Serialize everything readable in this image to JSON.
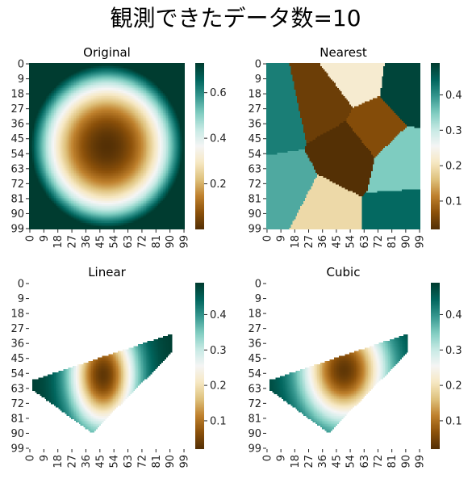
{
  "figure": {
    "suptitle": "観測できたデータ数=10",
    "colormap": "BrBG",
    "colormap_stops": [
      "#543005",
      "#8c510a",
      "#bf812d",
      "#dfc27d",
      "#f6e8c3",
      "#f5f5f5",
      "#c7eae5",
      "#80cdc1",
      "#35978f",
      "#01665e",
      "#003c30"
    ]
  },
  "chart_data": [
    {
      "type": "heatmap",
      "title": "Original",
      "grid_size": [
        100,
        100
      ],
      "xticks": [
        "0",
        "9",
        "18",
        "27",
        "36",
        "45",
        "54",
        "63",
        "72",
        "81",
        "90",
        "99"
      ],
      "yticks": [
        "0",
        "9",
        "18",
        "27",
        "36",
        "45",
        "54",
        "63",
        "72",
        "81",
        "90",
        "99"
      ],
      "vrange": [
        0.0,
        0.73
      ],
      "colorbar_ticks": [
        "0.2",
        "0.4",
        "0.6"
      ],
      "function": "0.75*(((x-49.5)/49.5)^2+((y-49.5)/49.5)^2)",
      "nan_region": "none"
    },
    {
      "type": "heatmap",
      "title": "Nearest",
      "grid_size": [
        100,
        100
      ],
      "xticks": [
        "0",
        "9",
        "18",
        "27",
        "36",
        "45",
        "54",
        "63",
        "72",
        "81",
        "90",
        "99"
      ],
      "yticks": [
        "0",
        "9",
        "18",
        "27",
        "36",
        "45",
        "54",
        "63",
        "72",
        "81",
        "90",
        "99"
      ],
      "vrange": [
        0.02,
        0.49
      ],
      "colorbar_ticks": [
        "0.1",
        "0.2",
        "0.3",
        "0.4"
      ],
      "points": [
        {
          "x": 3,
          "y": 30,
          "v": 0.42
        },
        {
          "x": 38,
          "y": 22,
          "v": 0.04
        },
        {
          "x": 55,
          "y": 8,
          "v": 0.22
        },
        {
          "x": 94,
          "y": 14,
          "v": 0.48
        },
        {
          "x": 54,
          "y": 52,
          "v": 0.02
        },
        {
          "x": 86,
          "y": 60,
          "v": 0.35
        },
        {
          "x": 10,
          "y": 78,
          "v": 0.38
        },
        {
          "x": 88,
          "y": 92,
          "v": 0.44
        },
        {
          "x": 35,
          "y": 92,
          "v": 0.19
        },
        {
          "x": 68,
          "y": 40,
          "v": 0.06
        }
      ],
      "nan_region": "none"
    },
    {
      "type": "heatmap",
      "title": "Linear",
      "grid_size": [
        100,
        100
      ],
      "xticks": [
        "0",
        "9",
        "18",
        "27",
        "36",
        "45",
        "54",
        "63",
        "72",
        "81",
        "90",
        "99"
      ],
      "yticks": [
        "0",
        "9",
        "18",
        "27",
        "36",
        "45",
        "54",
        "63",
        "72",
        "81",
        "90",
        "99"
      ],
      "vrange": [
        0.02,
        0.49
      ],
      "colorbar_ticks": [
        "0.1",
        "0.2",
        "0.3",
        "0.4"
      ],
      "method": "linear",
      "hull": [
        [
          2,
          58
        ],
        [
          92,
          30
        ],
        [
          92,
          41
        ],
        [
          40,
          90
        ],
        [
          2,
          64
        ]
      ],
      "nan_region": "outside hull"
    },
    {
      "type": "heatmap",
      "title": "Cubic",
      "grid_size": [
        100,
        100
      ],
      "xticks": [
        "0",
        "9",
        "18",
        "27",
        "36",
        "45",
        "54",
        "63",
        "72",
        "81",
        "90",
        "99"
      ],
      "yticks": [
        "0",
        "9",
        "18",
        "27",
        "36",
        "45",
        "54",
        "63",
        "72",
        "81",
        "90",
        "99"
      ],
      "vrange": [
        0.02,
        0.49
      ],
      "colorbar_ticks": [
        "0.1",
        "0.2",
        "0.3",
        "0.4"
      ],
      "method": "cubic",
      "hull": [
        [
          2,
          58
        ],
        [
          92,
          30
        ],
        [
          92,
          41
        ],
        [
          40,
          90
        ],
        [
          2,
          64
        ]
      ],
      "nan_region": "outside hull"
    }
  ]
}
